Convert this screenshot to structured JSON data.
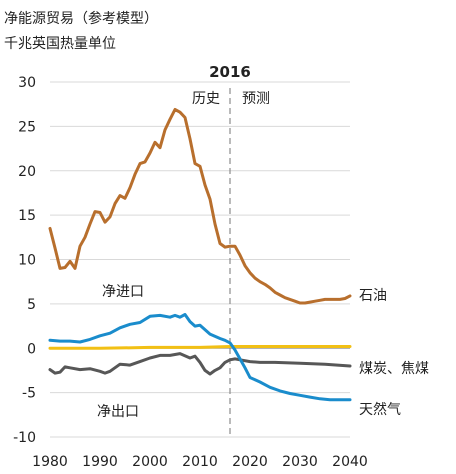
{
  "chart_data": {
    "type": "line",
    "title": "净能源贸易（参考模型）",
    "subtitle": "千兆英国热量单位",
    "xlim": [
      1980,
      2040
    ],
    "ylim": [
      -10,
      30
    ],
    "x_ticks": [
      1980,
      1990,
      2000,
      2010,
      2020,
      2030,
      2040
    ],
    "y_ticks": [
      30,
      25,
      20,
      15,
      10,
      5,
      0,
      -5,
      -10
    ],
    "grid": "horizontal",
    "divider": {
      "year": 2016,
      "label": "2016",
      "left_label": "历史",
      "right_label": "预测"
    },
    "annotations": {
      "net_imports": "净进口",
      "net_exports": "净出口"
    },
    "series": [
      {
        "name": "石油",
        "color": "#b86f2d",
        "x": [
          1980,
          1981,
          1982,
          1983,
          1984,
          1985,
          1986,
          1987,
          1988,
          1989,
          1990,
          1991,
          1992,
          1993,
          1994,
          1995,
          1996,
          1997,
          1998,
          1999,
          2000,
          2001,
          2002,
          2003,
          2004,
          2005,
          2006,
          2007,
          2008,
          2009,
          2010,
          2011,
          2012,
          2013,
          2014,
          2015,
          2016,
          2017,
          2018,
          2019,
          2020,
          2021,
          2022,
          2023,
          2024,
          2025,
          2026,
          2027,
          2028,
          2029,
          2030,
          2031,
          2032,
          2033,
          2034,
          2035,
          2036,
          2037,
          2038,
          2039,
          2040
        ],
        "values": [
          13.5,
          11.3,
          9.0,
          9.1,
          9.8,
          9.0,
          11.5,
          12.5,
          14.0,
          15.4,
          15.3,
          14.2,
          14.8,
          16.3,
          17.2,
          16.9,
          18.1,
          19.6,
          20.8,
          21.0,
          22.0,
          23.2,
          22.6,
          24.6,
          25.8,
          26.9,
          26.6,
          26.0,
          23.6,
          20.8,
          20.5,
          18.4,
          16.8,
          14.0,
          11.8,
          11.4,
          11.5,
          11.5,
          10.5,
          9.3,
          8.5,
          7.9,
          7.5,
          7.2,
          6.8,
          6.3,
          6.0,
          5.7,
          5.5,
          5.3,
          5.1,
          5.1,
          5.2,
          5.3,
          5.4,
          5.5,
          5.5,
          5.5,
          5.5,
          5.6,
          5.9
        ]
      },
      {
        "name": "天然气",
        "color": "#1a8ccc",
        "x": [
          1980,
          1982,
          1984,
          1986,
          1988,
          1990,
          1992,
          1994,
          1996,
          1998,
          2000,
          2002,
          2004,
          2005,
          2006,
          2007,
          2008,
          2009,
          2010,
          2012,
          2014,
          2015,
          2016,
          2017,
          2018,
          2019,
          2020,
          2022,
          2024,
          2026,
          2028,
          2030,
          2032,
          2034,
          2036,
          2038,
          2040
        ],
        "values": [
          0.9,
          0.8,
          0.8,
          0.7,
          1.0,
          1.4,
          1.7,
          2.3,
          2.7,
          2.9,
          3.6,
          3.7,
          3.5,
          3.7,
          3.5,
          3.8,
          3.0,
          2.5,
          2.6,
          1.6,
          1.1,
          0.9,
          0.6,
          -0.2,
          -1.2,
          -2.2,
          -3.3,
          -3.8,
          -4.4,
          -4.8,
          -5.1,
          -5.3,
          -5.5,
          -5.7,
          -5.8,
          -5.8,
          -5.8
        ]
      },
      {
        "name": "煤炭、焦煤",
        "color": "#575757",
        "x": [
          1980,
          1981,
          1982,
          1983,
          1984,
          1986,
          1988,
          1990,
          1991,
          1992,
          1994,
          1996,
          1998,
          2000,
          2002,
          2004,
          2006,
          2008,
          2009,
          2010,
          2011,
          2012,
          2013,
          2014,
          2015,
          2016,
          2017,
          2018,
          2020,
          2022,
          2025,
          2030,
          2035,
          2040
        ],
        "values": [
          -2.4,
          -2.8,
          -2.7,
          -2.1,
          -2.2,
          -2.4,
          -2.3,
          -2.6,
          -2.8,
          -2.6,
          -1.8,
          -1.9,
          -1.5,
          -1.1,
          -0.8,
          -0.8,
          -0.6,
          -1.1,
          -0.9,
          -1.6,
          -2.5,
          -2.9,
          -2.5,
          -2.2,
          -1.6,
          -1.3,
          -1.2,
          -1.3,
          -1.5,
          -1.6,
          -1.6,
          -1.7,
          -1.8,
          -2.0
        ]
      },
      {
        "name": "",
        "color": "#f2c014",
        "x": [
          1980,
          1990,
          2000,
          2010,
          2016,
          2020,
          2030,
          2040
        ],
        "values": [
          0.0,
          0.0,
          0.1,
          0.1,
          0.2,
          0.2,
          0.2,
          0.2
        ]
      }
    ]
  }
}
